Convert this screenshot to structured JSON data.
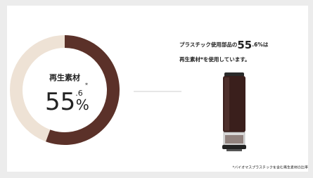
{
  "chart_data": {
    "type": "donut",
    "center_label": "再生素材",
    "values": [
      55.6
    ],
    "value_labels": [
      "55.6%"
    ],
    "value_note_mark": "*",
    "color": "#5b3129",
    "track_color": "#eee2d5",
    "caption": [
      "プラスチック使用部品の55.6%は",
      "再生素材*を使用しています。"
    ],
    "footnote": "*バイオマスプラスチックを含む再生素材の比率"
  }
}
